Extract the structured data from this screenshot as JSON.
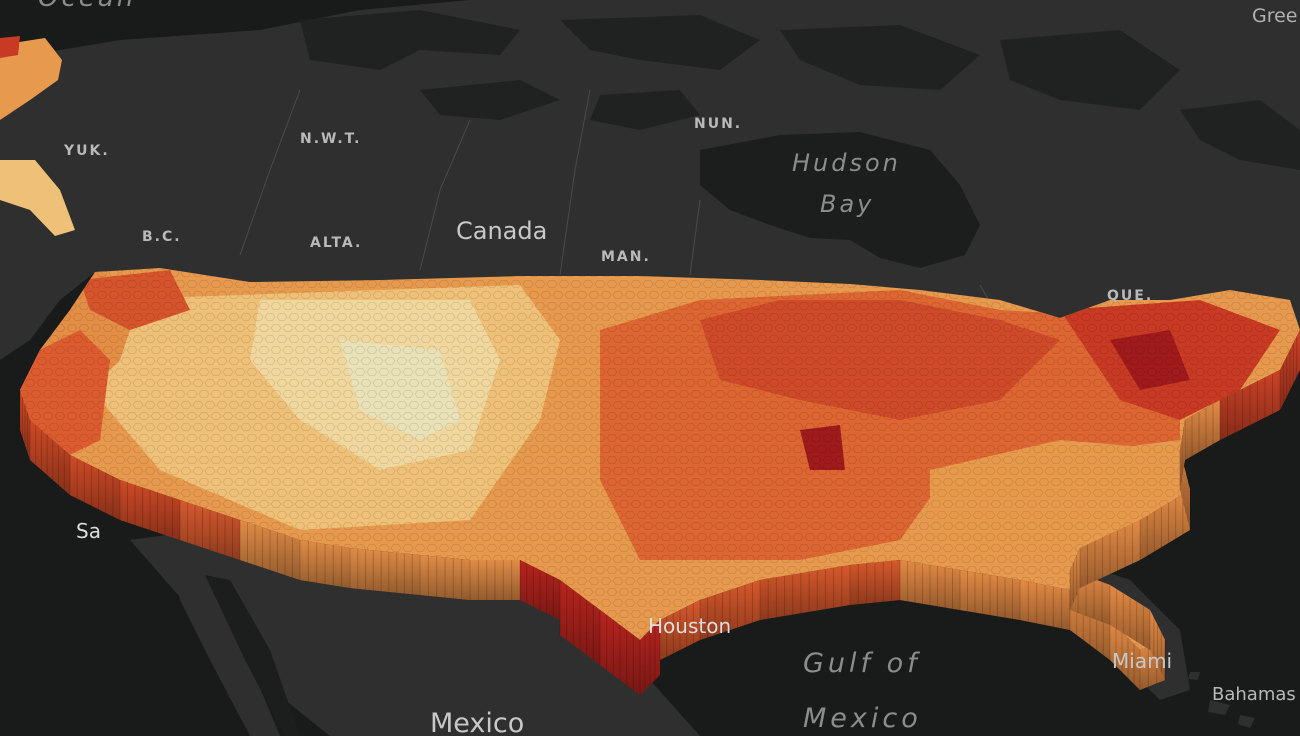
{
  "map": {
    "type": "3D hexagon-column heatmap",
    "color_ramp": [
      "#f3e7b2",
      "#efc477",
      "#e89a4c",
      "#dd6633",
      "#c93a24",
      "#a01a1c"
    ],
    "colors": {
      "land": "#2f2f2f",
      "water": "#191a1a",
      "borders": "#4b4b4b"
    },
    "labels": {
      "ocean": "Ocean",
      "greenland": "Gree",
      "yukon": "YUK.",
      "nwt": "N.W.T.",
      "nunavut": "NUN.",
      "bc": "B.C.",
      "alberta": "ALTA.",
      "manitoba": "MAN.",
      "quebec": "QUE.",
      "canada": "Canada",
      "hudson_bay_1": "Hudson",
      "hudson_bay_2": "Bay",
      "gulf_1": "Gulf of",
      "gulf_2": "Mexico",
      "mexico": "Mexico",
      "san_francisco": "Sa",
      "houston": "Houston",
      "miami": "Miami",
      "bahamas": "Bahamas"
    }
  }
}
